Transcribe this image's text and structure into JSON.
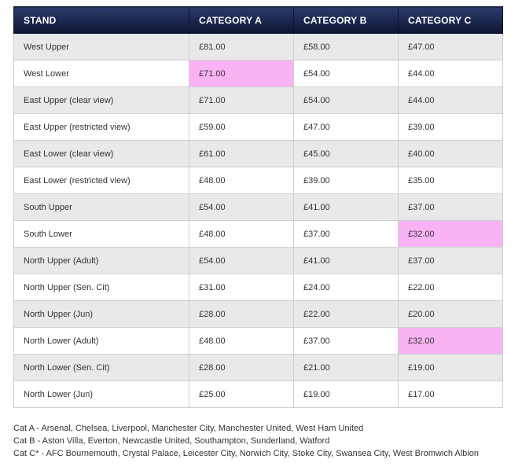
{
  "table": {
    "headers": [
      "STAND",
      "CATEGORY A",
      "CATEGORY B",
      "CATEGORY C"
    ],
    "highlight_color": "#f9b3f5",
    "rows": [
      {
        "stand": "West Upper",
        "a": "£81.00",
        "b": "£58.00",
        "c": "£47.00",
        "highlight": []
      },
      {
        "stand": "West Lower",
        "a": "£71.00",
        "b": "£54.00",
        "c": "£44.00",
        "highlight": [
          "a"
        ]
      },
      {
        "stand": "East Upper (clear view)",
        "a": "£71.00",
        "b": "£54.00",
        "c": "£44.00",
        "highlight": []
      },
      {
        "stand": "East Upper (restricted view)",
        "a": "£59.00",
        "b": "£47.00",
        "c": "£39.00",
        "highlight": []
      },
      {
        "stand": "East Lower (clear view)",
        "a": "£61.00",
        "b": "£45.00",
        "c": "£40.00",
        "highlight": []
      },
      {
        "stand": "East Lower (restricted view)",
        "a": "£48.00",
        "b": "£39.00",
        "c": "£35.00",
        "highlight": []
      },
      {
        "stand": "South Upper",
        "a": "£54.00",
        "b": "£41.00",
        "c": "£37.00",
        "highlight": []
      },
      {
        "stand": "South Lower",
        "a": "£48.00",
        "b": "£37.00",
        "c": "£32.00",
        "highlight": [
          "c"
        ]
      },
      {
        "stand": "North Upper (Adult)",
        "a": "£54.00",
        "b": "£41.00",
        "c": "£37.00",
        "highlight": []
      },
      {
        "stand": "North Upper (Sen. Cit)",
        "a": "£31.00",
        "b": "£24.00",
        "c": "£22.00",
        "highlight": []
      },
      {
        "stand": "North Upper (Jun)",
        "a": "£28.00",
        "b": "£22.00",
        "c": "£20.00",
        "highlight": []
      },
      {
        "stand": "North Lower (Adult)",
        "a": "£48.00",
        "b": "£37.00",
        "c": "£32.00",
        "highlight": [
          "c"
        ]
      },
      {
        "stand": "North Lower (Sen. Cit)",
        "a": "£28.00",
        "b": "£21.00",
        "c": "£19.00",
        "highlight": []
      },
      {
        "stand": "North Lower (Jun)",
        "a": "£25.00",
        "b": "£19.00",
        "c": "£17.00",
        "highlight": []
      }
    ]
  },
  "footnotes": [
    "Cat A - Arsenal, Chelsea, Liverpool, Manchester City, Manchester United, West Ham United",
    "Cat B - Aston Villa, Everton, Newcastle United, Southampton, Sunderland, Watford",
    "Cat C* - AFC Bournemouth, Crystal Palace, Leicester City, Norwich City, Stoke City, Swansea City, West Bromwich Albion"
  ]
}
